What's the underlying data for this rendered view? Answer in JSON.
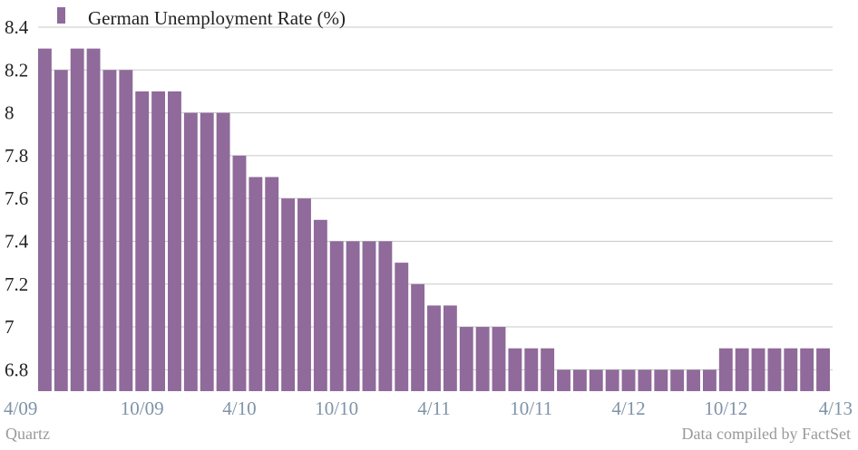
{
  "chart_data": {
    "type": "bar",
    "series": [
      {
        "name": "German Unemployment Rate (%)",
        "values": [
          8.3,
          8.2,
          8.3,
          8.3,
          8.2,
          8.2,
          8.1,
          8.1,
          8.1,
          8.0,
          8.0,
          8.0,
          7.8,
          7.7,
          7.7,
          7.6,
          7.6,
          7.5,
          7.4,
          7.4,
          7.4,
          7.4,
          7.3,
          7.2,
          7.1,
          7.1,
          7.0,
          7.0,
          7.0,
          6.9,
          6.9,
          6.9,
          6.8,
          6.8,
          6.8,
          6.8,
          6.8,
          6.8,
          6.8,
          6.8,
          6.8,
          6.8,
          6.9,
          6.9,
          6.9,
          6.9,
          6.9,
          6.9,
          6.9
        ]
      }
    ],
    "x_tick_labels": [
      "4/09",
      "10/09",
      "4/10",
      "10/10",
      "4/11",
      "10/11",
      "4/12",
      "10/12",
      "4/13"
    ],
    "y_tick_labels": [
      "6.8",
      "7",
      "7.2",
      "7.4",
      "7.6",
      "7.8",
      "8",
      "8.2",
      "8.4"
    ],
    "ylim": [
      6.7,
      8.4
    ],
    "grid": true,
    "legend_position": "top-left",
    "colors": {
      "bar": "#8f6a9a",
      "grid": "#c8c8c8",
      "x_tick": "#7f93a8"
    }
  },
  "footer": {
    "source": "Quartz",
    "credit": "Data compiled by FactSet"
  }
}
